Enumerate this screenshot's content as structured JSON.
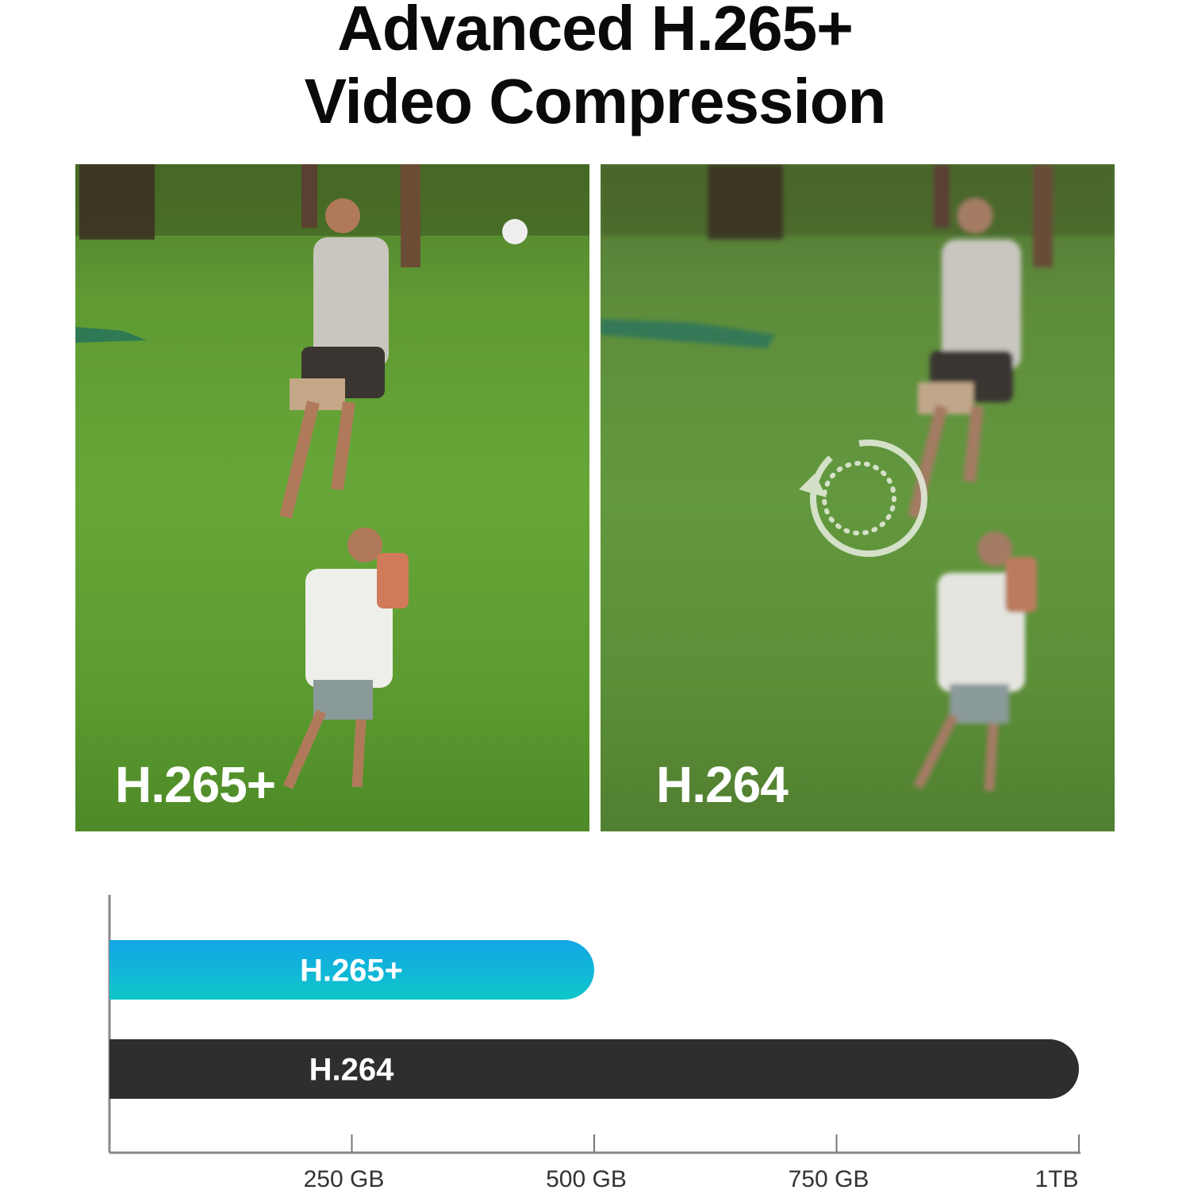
{
  "title": {
    "line1": "Advanced H.265+",
    "line2": "Video Compression"
  },
  "panels": [
    {
      "label": "H.265+",
      "quality": "sharp"
    },
    {
      "label": "H.264",
      "quality": "blurred",
      "overlay_icon": "loading-spinner-icon"
    }
  ],
  "chart_data": {
    "type": "bar",
    "orientation": "horizontal",
    "categories": [
      "H.265+",
      "H.264"
    ],
    "values": [
      500,
      1000
    ],
    "unit": "GB",
    "xlim": [
      0,
      1000
    ],
    "ticks": [
      250,
      500,
      750,
      1000
    ],
    "tick_labels": [
      "250 GB",
      "500 GB",
      "750 GB",
      "1TB"
    ],
    "grid": false,
    "colors": [
      "#12a6e6",
      "#2f2d2d"
    ],
    "gradient_end": "#0fc6c9"
  }
}
